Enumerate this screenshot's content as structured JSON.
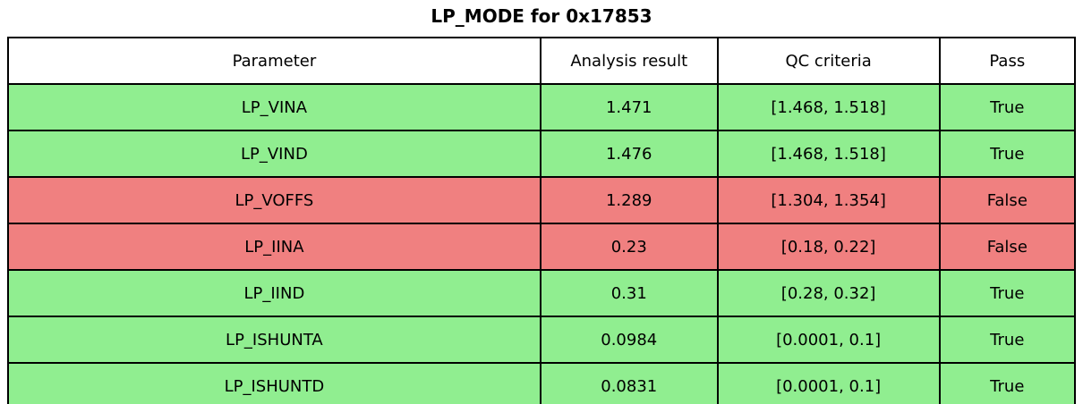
{
  "title": "LP_MODE for 0x17853",
  "colors": {
    "pass_row": "#90ee90",
    "fail_row": "#f08080",
    "header_row": "#ffffff",
    "border": "#000000",
    "text": "#000000"
  },
  "chart_data": {
    "type": "table",
    "title": "LP_MODE for 0x17853",
    "columns": [
      "Parameter",
      "Analysis result",
      "QC criteria",
      "Pass"
    ],
    "rows": [
      {
        "parameter": "LP_VINA",
        "result": "1.471",
        "criteria": "[1.468, 1.518]",
        "pass": "True",
        "status": "pass"
      },
      {
        "parameter": "LP_VIND",
        "result": "1.476",
        "criteria": "[1.468, 1.518]",
        "pass": "True",
        "status": "pass"
      },
      {
        "parameter": "LP_VOFFS",
        "result": "1.289",
        "criteria": "[1.304, 1.354]",
        "pass": "False",
        "status": "fail"
      },
      {
        "parameter": "LP_IINA",
        "result": "0.23",
        "criteria": "[0.18, 0.22]",
        "pass": "False",
        "status": "fail"
      },
      {
        "parameter": "LP_IIND",
        "result": "0.31",
        "criteria": "[0.28, 0.32]",
        "pass": "True",
        "status": "pass"
      },
      {
        "parameter": "LP_ISHUNTA",
        "result": "0.0984",
        "criteria": "[0.0001, 0.1]",
        "pass": "True",
        "status": "pass"
      },
      {
        "parameter": "LP_ISHUNTD",
        "result": "0.0831",
        "criteria": "[0.0001, 0.1]",
        "pass": "True",
        "status": "pass"
      }
    ]
  }
}
